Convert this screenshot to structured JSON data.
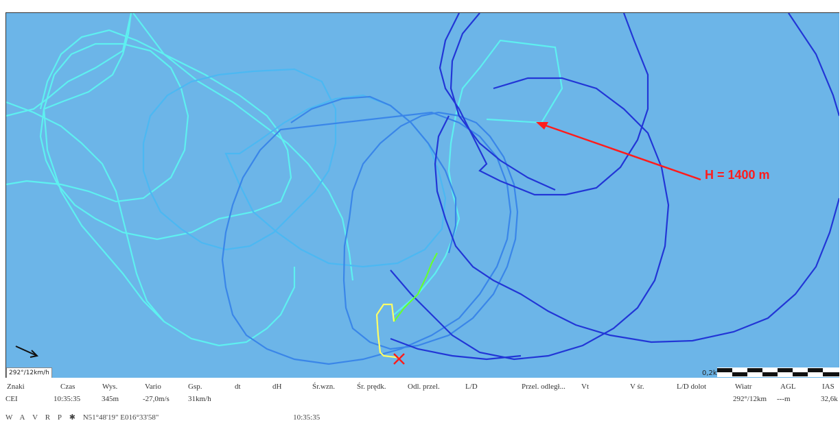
{
  "map": {
    "annotation": "H = 1400 m",
    "wind_label": "292°/12km/h",
    "scale_label": "0,2km",
    "colors": {
      "background": "#6cb5e8",
      "circle_cyan": "#5ef0f0",
      "circle_lightblue": "#4cb8f2",
      "circle_mid": "#3a86e8",
      "circle_dark": "#2236d6",
      "annotation": "#ff1c1c",
      "track_yellow": "#ffff66",
      "track_green": "#66ff33"
    }
  },
  "panel": {
    "headers": [
      "Znaki",
      "Czas",
      "Wys.",
      "Vario",
      "Gsp.",
      "dt",
      "dH",
      "Śr.wzn.",
      "Śr. prędk.",
      "Odl. przel.",
      "L/D",
      "Przel. odległ...",
      "Vt",
      "V śr.",
      "L/D dolot",
      "Wiatr",
      "AGL",
      "IAS"
    ],
    "values": {
      "znaki": "CEI",
      "czas": "10:35:35",
      "wys": "345m",
      "vario": "-27,0m/s",
      "gsp": "31km/h",
      "wiatr": "292°/12km",
      "agl": "---m",
      "ias": "32,6k"
    }
  },
  "status": {
    "mode_letters": [
      "W",
      "A",
      "V",
      "R",
      "P"
    ],
    "coords": "N51°48'19\"  E016°33'58\"",
    "time": "10:35:35"
  }
}
